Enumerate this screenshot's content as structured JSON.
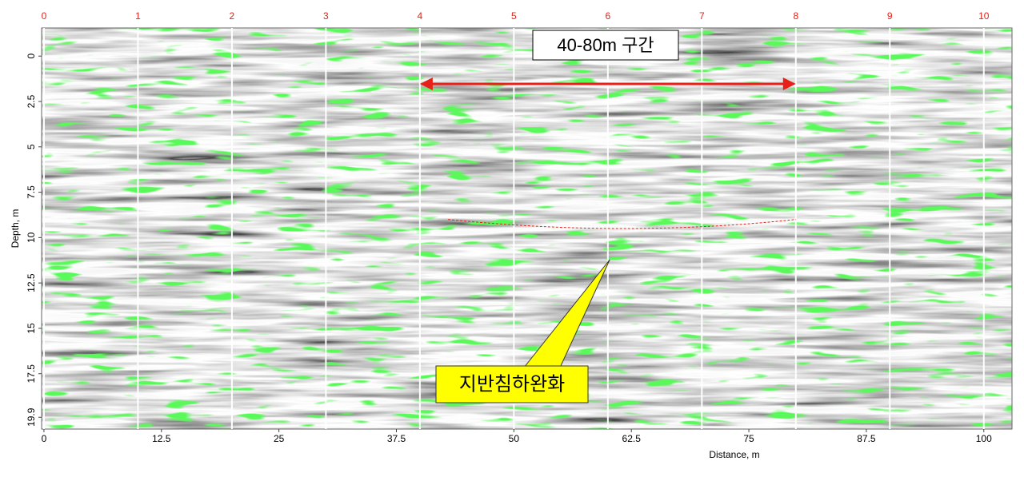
{
  "chart_data": {
    "type": "radargram",
    "x_label": "Distance, m",
    "y_label": "Depth, m",
    "xlim": [
      -0.25,
      103
    ],
    "ylim": [
      -1.55,
      20.55
    ],
    "xticks": [
      0,
      12.5,
      25,
      37.5,
      50,
      62.5,
      75,
      87.5,
      100
    ],
    "yticks": [
      0,
      2.5,
      5,
      7.5,
      10,
      12.5,
      15,
      17.5,
      19.9
    ],
    "markers": [
      {
        "value": 0,
        "label": "0"
      },
      {
        "value": 10,
        "label": "1"
      },
      {
        "value": 20,
        "label": "2"
      },
      {
        "value": 30,
        "label": "3"
      },
      {
        "value": 40,
        "label": "4"
      },
      {
        "value": 50,
        "label": "5"
      },
      {
        "value": 60,
        "label": "6"
      },
      {
        "value": 70,
        "label": "7"
      },
      {
        "value": 80,
        "label": "8"
      },
      {
        "value": 90,
        "label": "9"
      },
      {
        "value": 100,
        "label": "10"
      }
    ],
    "marker_color": "#e8201a",
    "annotations": [
      {
        "text": "40-80m 구간",
        "span": [
          40,
          80
        ]
      },
      {
        "text": "지반침하완화"
      }
    ]
  }
}
